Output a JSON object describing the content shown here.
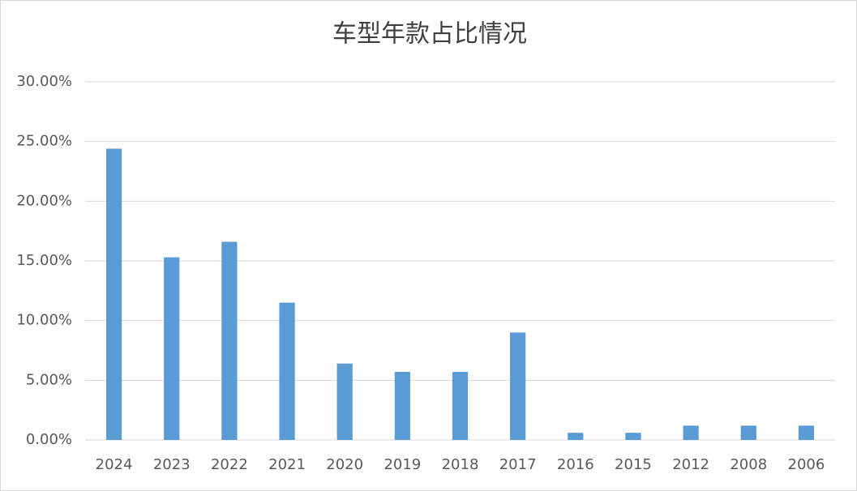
{
  "chart_data": {
    "type": "bar",
    "title": "车型年款占比情况",
    "categories": [
      "2024",
      "2023",
      "2022",
      "2021",
      "2020",
      "2019",
      "2018",
      "2017",
      "2016",
      "2015",
      "2012",
      "2008",
      "2006"
    ],
    "values": [
      24.4,
      15.3,
      16.6,
      11.5,
      6.4,
      5.7,
      5.7,
      9.0,
      0.6,
      0.6,
      1.2,
      1.2,
      1.2
    ],
    "color": "#5b9bd5",
    "ylim": [
      0,
      30
    ],
    "yticks": [
      {
        "value": 0,
        "label": "0.00%"
      },
      {
        "value": 5,
        "label": "5.00%"
      },
      {
        "value": 10,
        "label": "10.00%"
      },
      {
        "value": 15,
        "label": "15.00%"
      },
      {
        "value": 20,
        "label": "20.00%"
      },
      {
        "value": 25,
        "label": "25.00%"
      },
      {
        "value": 30,
        "label": "30.00%"
      }
    ],
    "grid": true
  }
}
